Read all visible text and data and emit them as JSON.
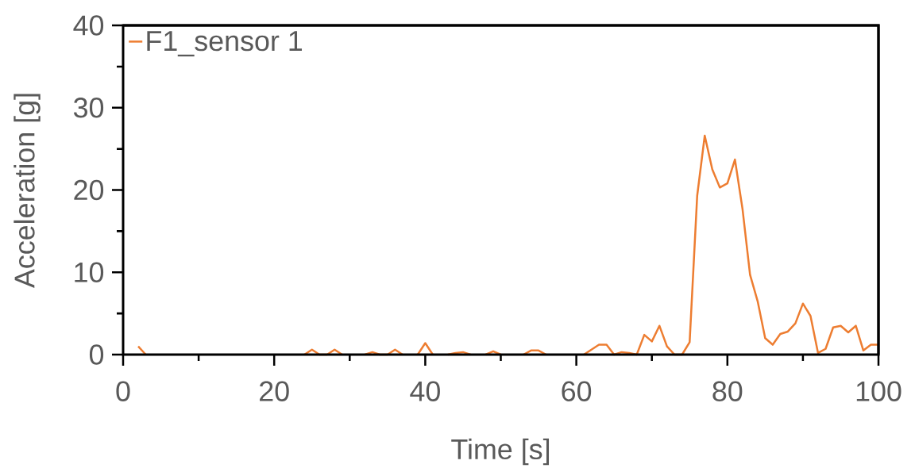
{
  "chart_data": {
    "type": "line",
    "xlabel": "Time [s]",
    "ylabel": "Acceleration [g]",
    "x": [
      2,
      3,
      4,
      5,
      6,
      7,
      8,
      9,
      10,
      11,
      12,
      13,
      14,
      15,
      16,
      17,
      18,
      19,
      20,
      21,
      22,
      23,
      24,
      25,
      26,
      27,
      28,
      29,
      30,
      31,
      32,
      33,
      34,
      35,
      36,
      37,
      38,
      39,
      40,
      41,
      42,
      43,
      44,
      45,
      46,
      47,
      48,
      49,
      50,
      51,
      52,
      53,
      54,
      55,
      56,
      57,
      58,
      59,
      60,
      61,
      62,
      63,
      64,
      65,
      66,
      67,
      68,
      69,
      70,
      71,
      72,
      73,
      74,
      75,
      76,
      77,
      78,
      79,
      80,
      81,
      82,
      83,
      84,
      85,
      86,
      87,
      88,
      89,
      90,
      91,
      92,
      93,
      94,
      95,
      96,
      97,
      98,
      99,
      100
    ],
    "series": [
      {
        "name": "F1_sensor 1",
        "color": "#ed7d31",
        "values": [
          1.0,
          0,
          null,
          null,
          null,
          null,
          null,
          null,
          null,
          null,
          null,
          null,
          null,
          null,
          null,
          null,
          null,
          null,
          null,
          null,
          null,
          null,
          0,
          0.6,
          0,
          0,
          0.6,
          0,
          null,
          null,
          0,
          0.3,
          0,
          0,
          0.6,
          0,
          null,
          0,
          1.4,
          0,
          null,
          0,
          0.2,
          0.3,
          0,
          null,
          0,
          0.4,
          0,
          null,
          null,
          0,
          0.5,
          0.5,
          0,
          null,
          null,
          null,
          null,
          0,
          0.6,
          1.2,
          1.2,
          0,
          0.3,
          0.2,
          0,
          2.4,
          1.6,
          3.5,
          1.0,
          0,
          0,
          1.5,
          19.3,
          26.6,
          22.5,
          20.3,
          20.8,
          23.7,
          17.7,
          9.7,
          6.5,
          2.0,
          1.2,
          2.5,
          2.8,
          3.8,
          6.2,
          4.7,
          0.2,
          0.7,
          3.3,
          3.5,
          2.7,
          3.5,
          0.5,
          1.2,
          1.2
        ]
      }
    ],
    "xlim": [
      0,
      100
    ],
    "ylim": [
      0,
      40
    ],
    "xticks": [
      0,
      20,
      40,
      60,
      80,
      100
    ],
    "yticks": [
      0,
      10,
      20,
      30,
      40
    ],
    "grid": false,
    "legend": "top left",
    "marker": "none",
    "line_style": "solid"
  }
}
